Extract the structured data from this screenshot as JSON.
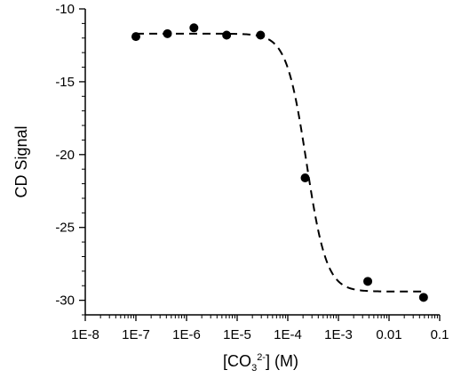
{
  "chart_data": {
    "type": "scatter",
    "title": "",
    "ylabel": "CD Signal",
    "xlabel": {
      "open": "[CO",
      "subscript": "3",
      "superscript": "2-",
      "close": "] (M)"
    },
    "x_scale": "log",
    "xlim": [
      1e-08,
      0.1
    ],
    "ylim": [
      -31,
      -10
    ],
    "x_ticks": [
      1e-08,
      1e-07,
      1e-06,
      1e-05,
      0.0001,
      0.001,
      0.01,
      0.1
    ],
    "x_tick_labels": [
      "1E-8",
      "1E-7",
      "1E-6",
      "1E-5",
      "1E-4",
      "1E-3",
      "0.01",
      "0.1"
    ],
    "y_ticks": [
      -10,
      -15,
      -20,
      -25,
      -30
    ],
    "y_tick_labels": [
      "-10",
      "-15",
      "-20",
      "-25",
      "-30"
    ],
    "grid": false,
    "series": [
      {
        "kind": "points",
        "marker": "filled-circle",
        "color": "#000000",
        "x": [
          1e-07,
          4.2e-07,
          1.4e-06,
          6.2e-06,
          2.9e-05,
          0.00022,
          0.0038,
          0.048
        ],
        "y": [
          -11.9,
          -11.7,
          -11.3,
          -11.8,
          -11.8,
          -21.6,
          -28.7,
          -29.8
        ]
      },
      {
        "kind": "fit",
        "style": "dashed",
        "color": "#000000",
        "model": "sigmoid",
        "top": -11.7,
        "bottom": -29.4,
        "logx50": -3.63,
        "slope": 2.2,
        "xrange": [
          1e-07,
          0.048
        ]
      }
    ]
  }
}
